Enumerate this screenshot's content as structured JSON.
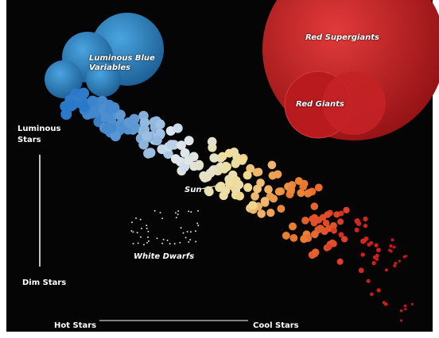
{
  "labels": {
    "luminous_blue_variables": "Luminous Blue Variables",
    "red_supergiants": "Red Supergiants",
    "red_giants": "Red Giants",
    "luminous_stars": "Luminous Stars",
    "dim_stars": "Dim Stars",
    "sun": "Sun",
    "white_dwarfs": "White Dwarfs",
    "hot_stars": "Hot Stars",
    "cool_stars": "Cool Stars"
  }
}
